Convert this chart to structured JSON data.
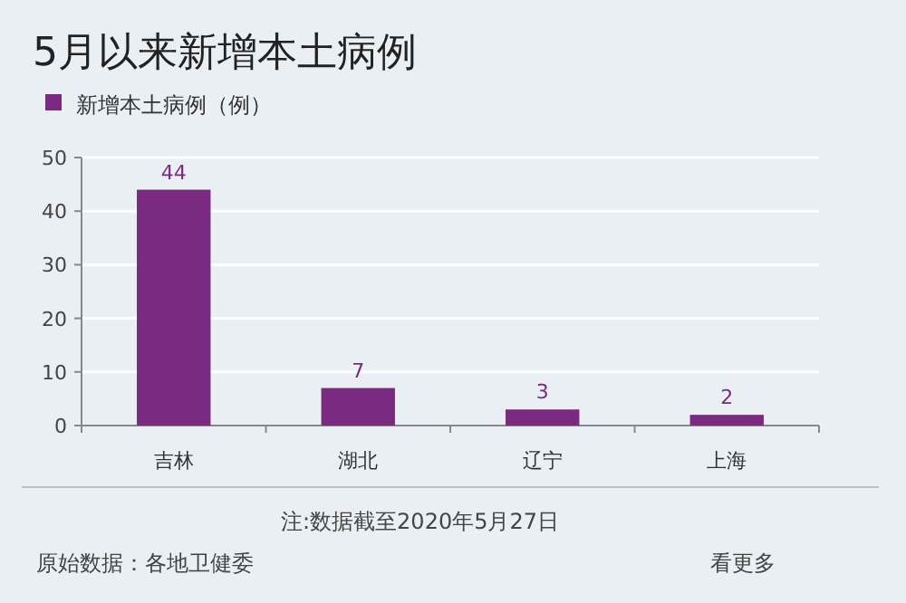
{
  "chart_data": {
    "type": "bar",
    "title": "5月以来新增本土病例",
    "categories": [
      "吉林",
      "湖北",
      "辽宁",
      "上海"
    ],
    "series": [
      {
        "name": "新增本土病例（例）",
        "color": "#7a2a80",
        "values": [
          44,
          7,
          3,
          2
        ]
      }
    ],
    "ylim": [
      0,
      50
    ],
    "yticks": [
      0,
      10,
      20,
      30,
      40,
      50
    ],
    "grid": "y",
    "legend": "top left",
    "data_labels": true,
    "annotations": [
      "注:数据截至2020年5月27日",
      "原始数据：各地卫健委",
      "看更多"
    ]
  }
}
